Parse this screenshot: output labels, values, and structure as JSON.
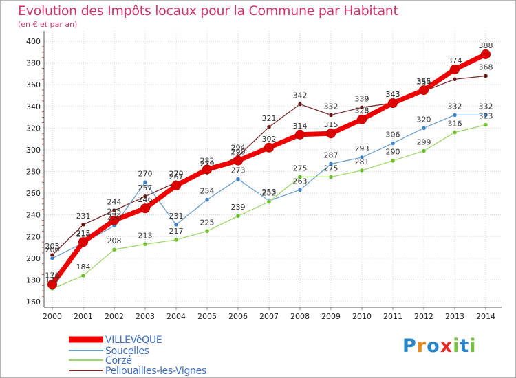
{
  "title": "Evolution des Impôts locaux pour la Commune par Habitant",
  "subtitle": "(en € et par an)",
  "logo": {
    "text": "Proxiti",
    "letters": [
      "P",
      "r",
      "o",
      "x",
      "i",
      "t",
      "i"
    ],
    "colors": [
      "#2a86c8",
      "#e88a1a",
      "#2a86c8",
      "#e32b2b",
      "#7ac143",
      "#2a86c8",
      "#7ac143"
    ]
  },
  "chart_data": {
    "type": "line",
    "x": [
      "2000",
      "2001",
      "2002",
      "2003",
      "2004",
      "2005",
      "2006",
      "2007",
      "2008",
      "2009",
      "2010",
      "2011",
      "2012",
      "2013",
      "2014"
    ],
    "yticks": [
      "160",
      "180",
      "200",
      "220",
      "240",
      "260",
      "280",
      "300",
      "320",
      "340",
      "360",
      "380",
      "400"
    ],
    "ylim": [
      160,
      400
    ],
    "grid": true,
    "legend_position": "bottom-left",
    "series": [
      {
        "name": "Pellouailles-les-Vignes",
        "color": "#7b2a2a",
        "marker": "#6b1414",
        "width": 1.3,
        "radius": 3,
        "values": [
          203,
          231,
          244,
          257,
          270,
          279,
          294,
          321,
          342,
          332,
          339,
          343,
          354,
          365,
          368
        ],
        "labels": [
          "203",
          "231",
          "244",
          "257",
          "270",
          "279",
          "294",
          "321",
          "342",
          "332",
          "339",
          "343",
          "354",
          "",
          "368"
        ]
      },
      {
        "name": "Soucelles",
        "color": "#6aa0d0",
        "marker": "#3d82c4",
        "width": 1.3,
        "radius": 3,
        "values": [
          200,
          214,
          230,
          270,
          231,
          254,
          273,
          253,
          263,
          287,
          293,
          306,
          320,
          332,
          332
        ],
        "labels": [
          "200",
          "214",
          "230",
          "270",
          "231",
          "254",
          "273",
          "253",
          "263",
          "287",
          "293",
          "306",
          "320",
          "332",
          "332"
        ]
      },
      {
        "name": "Corzé",
        "color": "#9ed86a",
        "marker": "#6cc02c",
        "width": 1.3,
        "radius": 3,
        "values": [
          172,
          184,
          208,
          213,
          217,
          225,
          239,
          252,
          275,
          275,
          281,
          290,
          299,
          316,
          323
        ],
        "labels": [
          "172",
          "184",
          "208",
          "213",
          "217",
          "225",
          "239",
          "252",
          "275",
          "275",
          "281",
          "290",
          "299",
          "316",
          "323"
        ]
      },
      {
        "name": "VILLEVêQUE",
        "color": "#ee0000",
        "marker": "#dd0000",
        "width": 7,
        "radius": 6.5,
        "values": [
          176,
          215,
          235,
          246,
          267,
          282,
          290,
          302,
          314,
          315,
          328,
          343,
          355,
          374,
          388
        ],
        "labels": [
          "176",
          "215",
          "235",
          "246",
          "267",
          "282",
          "290",
          "302",
          "314",
          "315",
          "328",
          "343",
          "355",
          "374",
          "388"
        ]
      }
    ],
    "legend": [
      "VILLEVêQUE",
      "Soucelles",
      "Corzé",
      "Pellouailles-les-Vignes"
    ]
  }
}
